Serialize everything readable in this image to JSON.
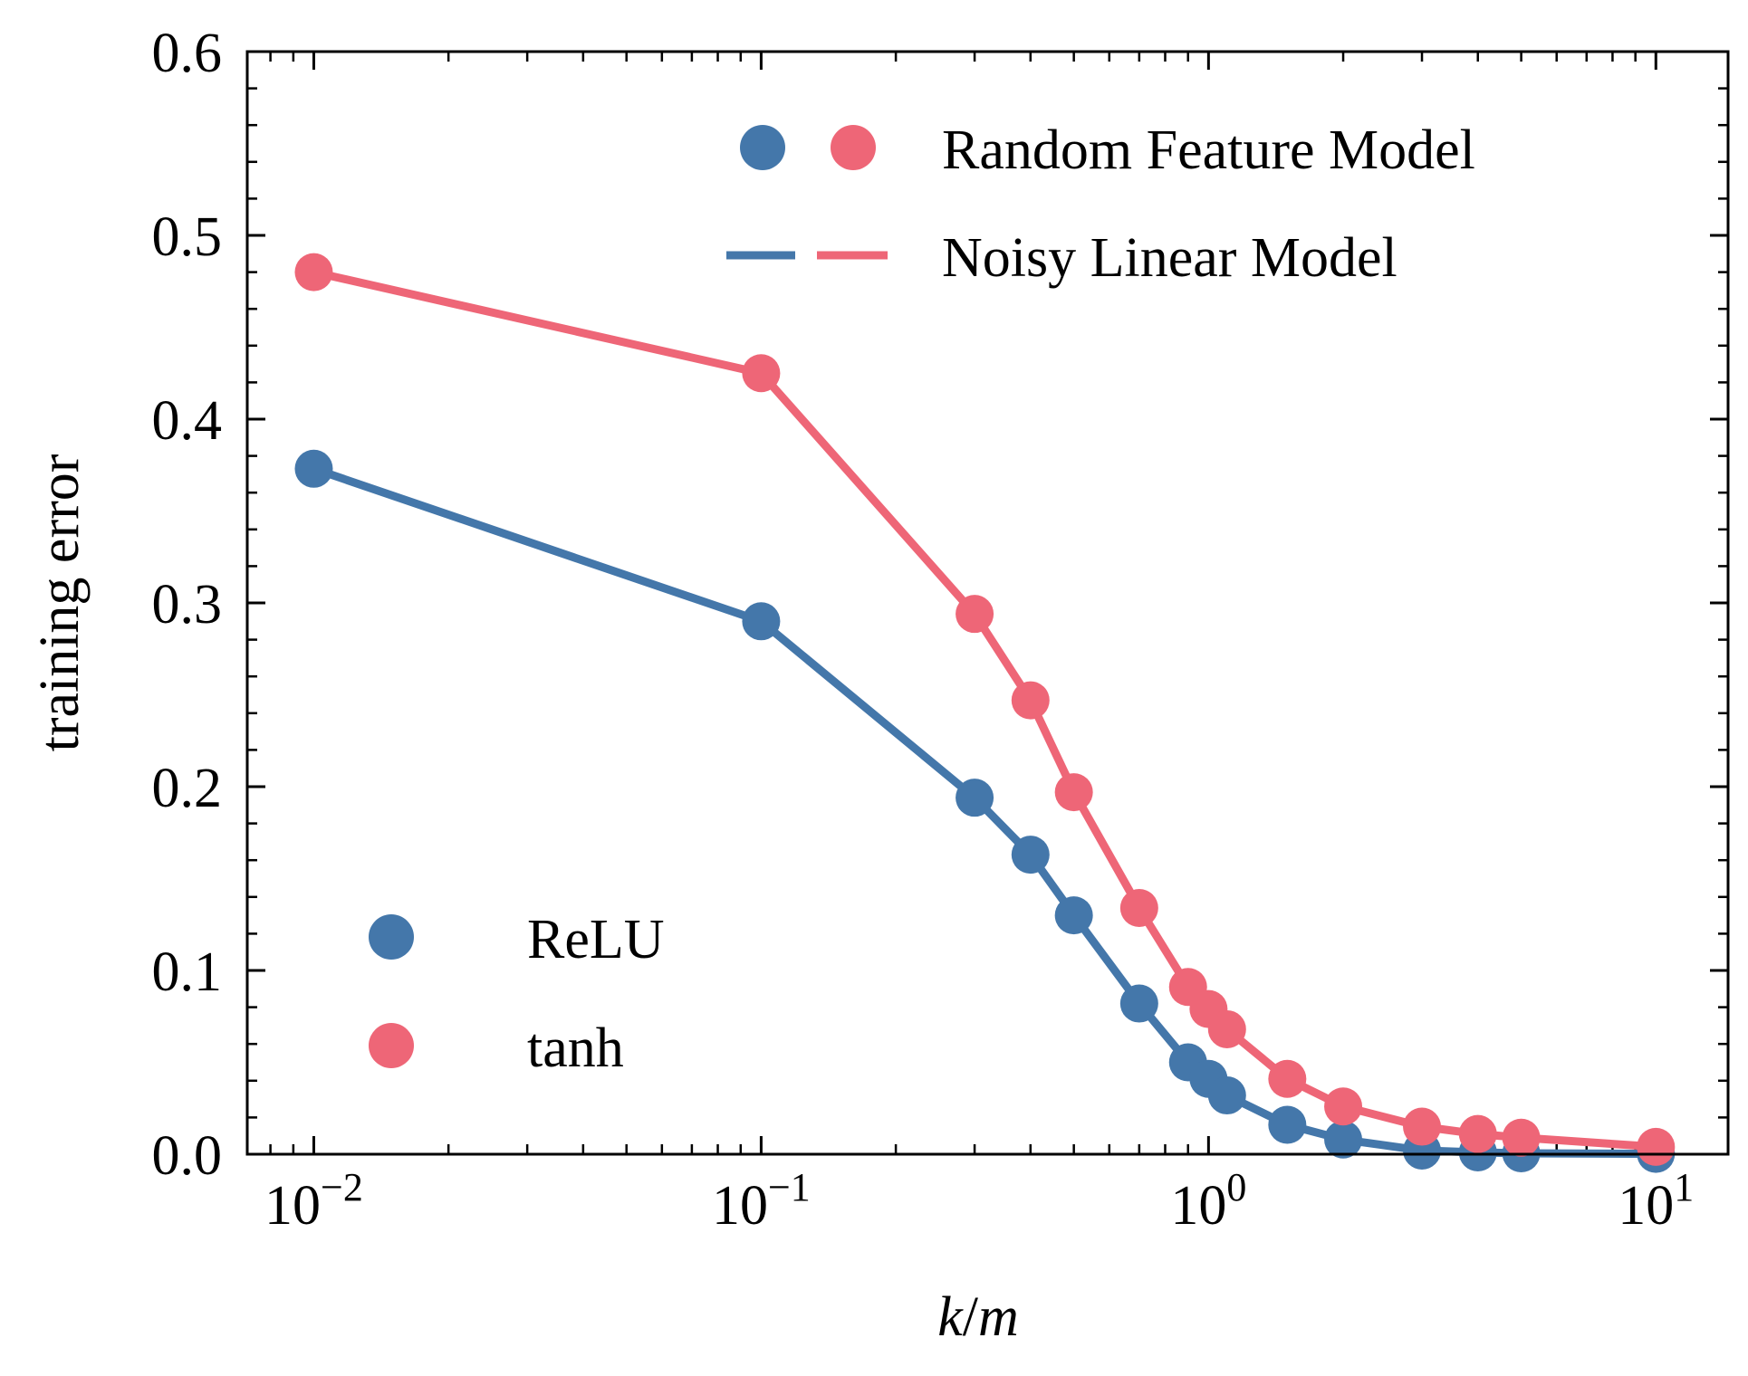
{
  "chart_data": {
    "type": "line",
    "title": "",
    "xlabel": "k/m",
    "xlabel_parts": [
      "k",
      "/",
      "m"
    ],
    "ylabel": "training error",
    "xscale": "log",
    "xlim": [
      0.0071,
      14.5
    ],
    "ylim": [
      0.0,
      0.6
    ],
    "grid": false,
    "x_ticks": [
      {
        "value": 0.01,
        "base": "10",
        "exp": "−2"
      },
      {
        "value": 0.1,
        "base": "10",
        "exp": "−1"
      },
      {
        "value": 1,
        "base": "10",
        "exp": "0"
      },
      {
        "value": 10,
        "base": "10",
        "exp": "1"
      }
    ],
    "y_ticks": [
      {
        "value": 0.0,
        "label": "0.0"
      },
      {
        "value": 0.1,
        "label": "0.1"
      },
      {
        "value": 0.2,
        "label": "0.2"
      },
      {
        "value": 0.3,
        "label": "0.3"
      },
      {
        "value": 0.4,
        "label": "0.4"
      },
      {
        "value": 0.5,
        "label": "0.5"
      },
      {
        "value": 0.6,
        "label": "0.6"
      }
    ],
    "series": [
      {
        "name": "ReLU",
        "color": "#4477aa",
        "x": [
          0.01,
          0.1,
          0.3,
          0.4,
          0.5,
          0.7,
          0.9,
          1.0,
          1.1,
          1.5,
          2.0,
          3.0,
          4.0,
          5.0,
          10.0
        ],
        "values": [
          0.373,
          0.29,
          0.194,
          0.163,
          0.13,
          0.082,
          0.05,
          0.041,
          0.032,
          0.016,
          0.008,
          0.002,
          0.001,
          0.0005,
          0.0002
        ]
      },
      {
        "name": "tanh",
        "color": "#ee6677",
        "x": [
          0.01,
          0.1,
          0.3,
          0.4,
          0.5,
          0.7,
          0.9,
          1.0,
          1.1,
          1.5,
          2.0,
          3.0,
          4.0,
          5.0,
          10.0
        ],
        "values": [
          0.48,
          0.425,
          0.294,
          0.247,
          0.197,
          0.134,
          0.091,
          0.079,
          0.068,
          0.041,
          0.026,
          0.015,
          0.011,
          0.009,
          0.004
        ]
      }
    ],
    "legend_style": {
      "position": "top-right",
      "entries": [
        {
          "label": "Random Feature Model",
          "kind": "markers"
        },
        {
          "label": "Noisy Linear Model",
          "kind": "dashes"
        }
      ]
    },
    "legend_series": {
      "position": "bottom-left",
      "entries": [
        {
          "label": "ReLU",
          "color": "#4477aa"
        },
        {
          "label": "tanh",
          "color": "#ee6677"
        }
      ]
    }
  }
}
